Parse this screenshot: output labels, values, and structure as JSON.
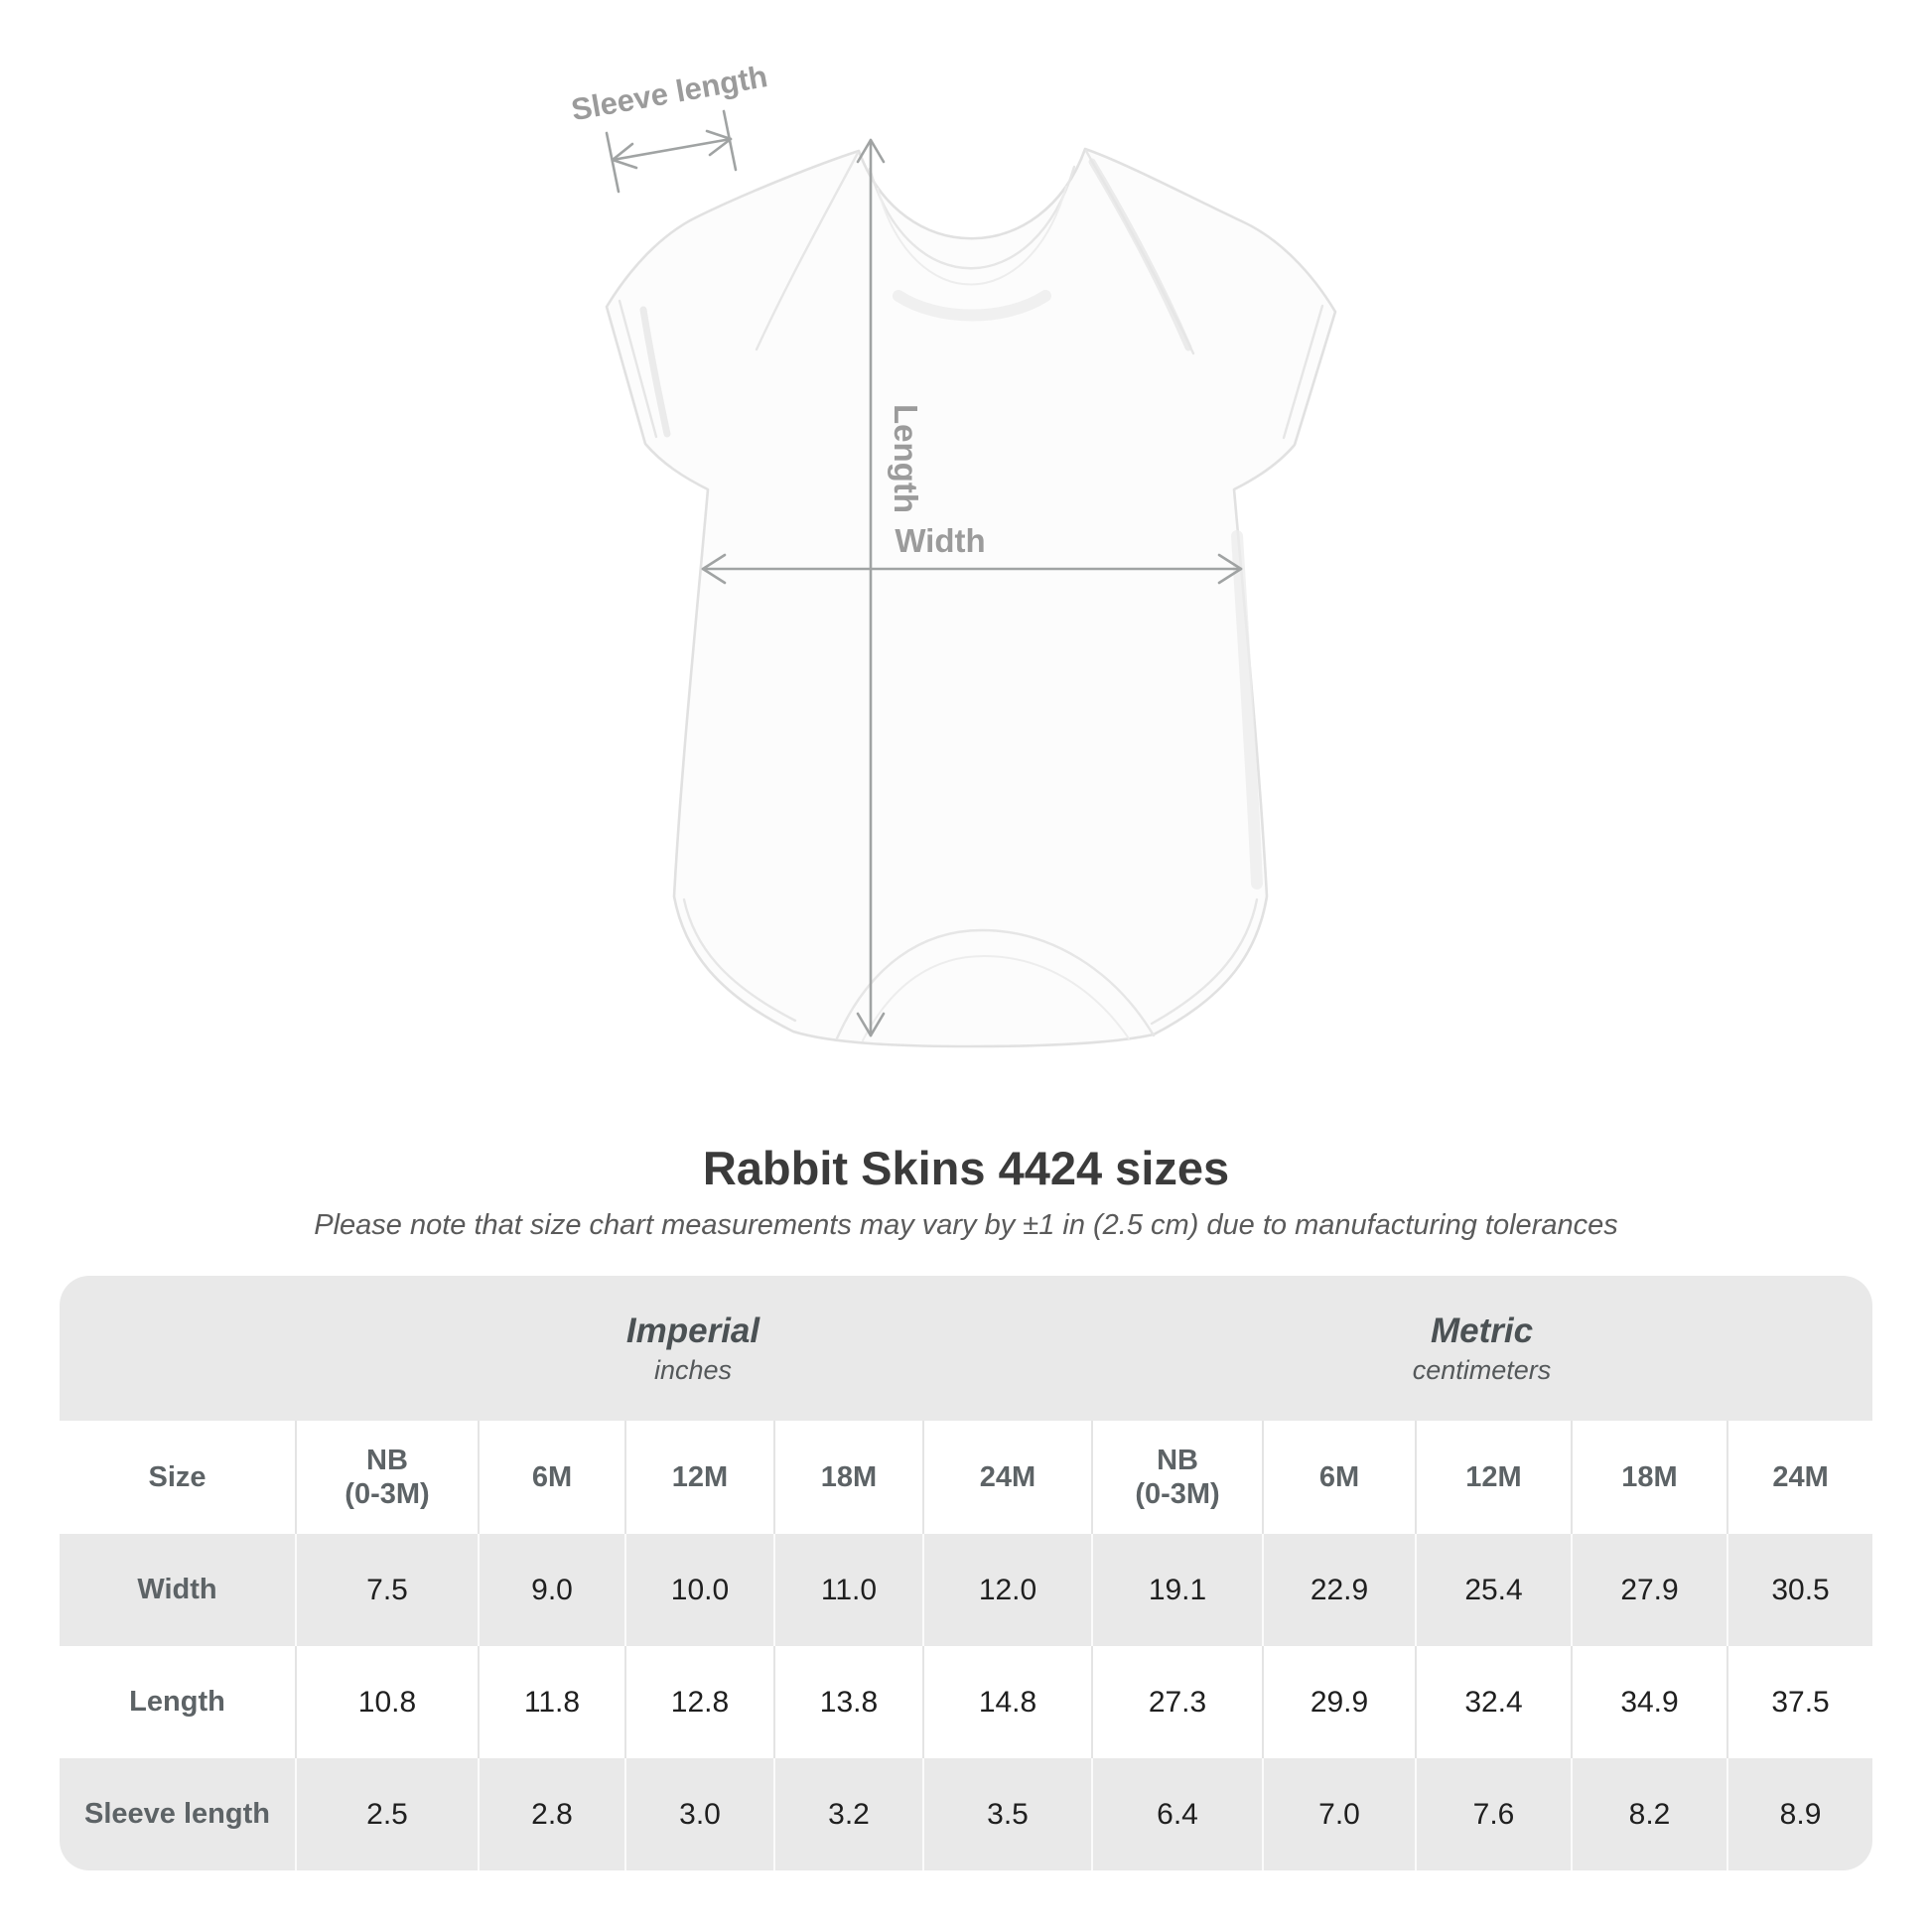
{
  "title": "Rabbit Skins 4424 sizes",
  "subtitle": "Please note that size chart measurements may vary by ±1 in (2.5 cm) due to manufacturing tolerances",
  "diagram": {
    "sleeve_length_label": "Sleeve length",
    "length_label": "Length",
    "width_label": "Width"
  },
  "table": {
    "size_header": "Size",
    "unit_groups": [
      {
        "label": "Imperial",
        "sublabel": "inches"
      },
      {
        "label": "Metric",
        "sublabel": "centimeters"
      }
    ],
    "sizes": [
      {
        "lines": [
          "NB",
          "(0-3M)"
        ]
      },
      {
        "lines": [
          "6M"
        ]
      },
      {
        "lines": [
          "12M"
        ]
      },
      {
        "lines": [
          "18M"
        ]
      },
      {
        "lines": [
          "24M"
        ]
      }
    ],
    "rows": [
      {
        "label": "Width",
        "imperial": [
          "7.5",
          "9.0",
          "10.0",
          "11.0",
          "12.0"
        ],
        "metric": [
          "19.1",
          "22.9",
          "25.4",
          "27.9",
          "30.5"
        ]
      },
      {
        "label": "Length",
        "imperial": [
          "10.8",
          "11.8",
          "12.8",
          "13.8",
          "14.8"
        ],
        "metric": [
          "27.3",
          "29.9",
          "32.4",
          "34.9",
          "37.5"
        ]
      },
      {
        "label": "Sleeve length",
        "imperial": [
          "2.5",
          "2.8",
          "3.0",
          "3.2",
          "3.5"
        ],
        "metric": [
          "6.4",
          "7.0",
          "7.6",
          "8.2",
          "8.9"
        ]
      }
    ]
  },
  "chart_data": {
    "type": "table",
    "title": "Rabbit Skins 4424 sizes",
    "note": "Measurements may vary by ±1 in (2.5 cm) due to manufacturing tolerances",
    "units": {
      "imperial": "inches",
      "metric": "centimeters"
    },
    "sizes": [
      "NB (0-3M)",
      "6M",
      "12M",
      "18M",
      "24M"
    ],
    "measurements": [
      {
        "name": "Width",
        "imperial_in": [
          7.5,
          9.0,
          10.0,
          11.0,
          12.0
        ],
        "metric_cm": [
          19.1,
          22.9,
          25.4,
          27.9,
          30.5
        ]
      },
      {
        "name": "Length",
        "imperial_in": [
          10.8,
          11.8,
          12.8,
          13.8,
          14.8
        ],
        "metric_cm": [
          27.3,
          29.9,
          32.4,
          34.9,
          37.5
        ]
      },
      {
        "name": "Sleeve length",
        "imperial_in": [
          2.5,
          2.8,
          3.0,
          3.2,
          3.5
        ],
        "metric_cm": [
          6.4,
          7.0,
          7.6,
          8.2,
          8.9
        ]
      }
    ]
  },
  "colors": {
    "annotation_gray": "#9b9b9b",
    "title_text": "#3b3b3b",
    "table_band_bg": "#e9e9e9",
    "header_text": "#5d6366",
    "value_text": "#1f1f1f"
  }
}
